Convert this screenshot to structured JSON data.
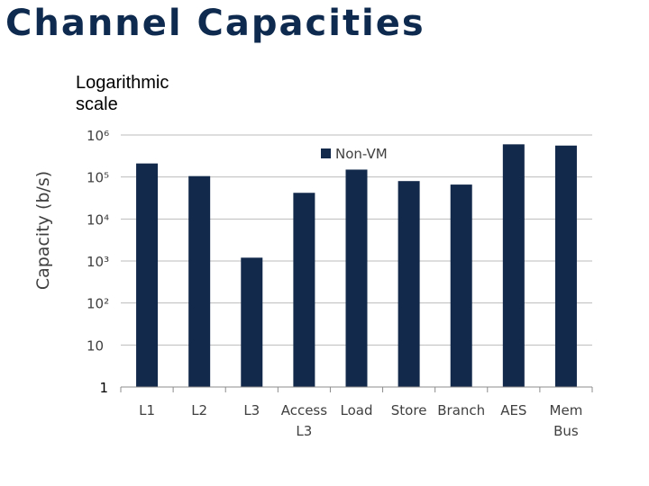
{
  "page": {
    "title": "Channel Capacities",
    "note": "Logarithmic scale"
  },
  "chart_data": {
    "type": "bar",
    "yscale": "log",
    "ylabel": "Capacity (b/s)",
    "ylim": [
      1,
      1000000
    ],
    "yticks": [
      {
        "value": 1,
        "label": "1"
      },
      {
        "value": 10,
        "label": "10"
      },
      {
        "value": 100,
        "label": "10²"
      },
      {
        "value": 1000,
        "label": "10³"
      },
      {
        "value": 10000,
        "label": "10⁴"
      },
      {
        "value": 100000,
        "label": "10⁵"
      },
      {
        "value": 1000000,
        "label": "10⁶"
      }
    ],
    "categories": [
      {
        "label": "L1",
        "lines": [
          "L1"
        ]
      },
      {
        "label": "L2",
        "lines": [
          "L2"
        ]
      },
      {
        "label": "L3",
        "lines": [
          "L3"
        ]
      },
      {
        "label": "Access L3",
        "lines": [
          "Access",
          "L3"
        ]
      },
      {
        "label": "Load",
        "lines": [
          "Load"
        ]
      },
      {
        "label": "Store",
        "lines": [
          "Store"
        ]
      },
      {
        "label": "Branch",
        "lines": [
          "Branch"
        ]
      },
      {
        "label": "AES",
        "lines": [
          "AES"
        ]
      },
      {
        "label": "Mem Bus",
        "lines": [
          "Mem",
          "Bus"
        ]
      }
    ],
    "series": [
      {
        "name": "Non-VM",
        "color": "#13294b",
        "values": [
          210000,
          105000,
          1200,
          42000,
          150000,
          80000,
          66000,
          600000,
          560000
        ]
      }
    ],
    "grid": true,
    "legend": "top-center"
  }
}
